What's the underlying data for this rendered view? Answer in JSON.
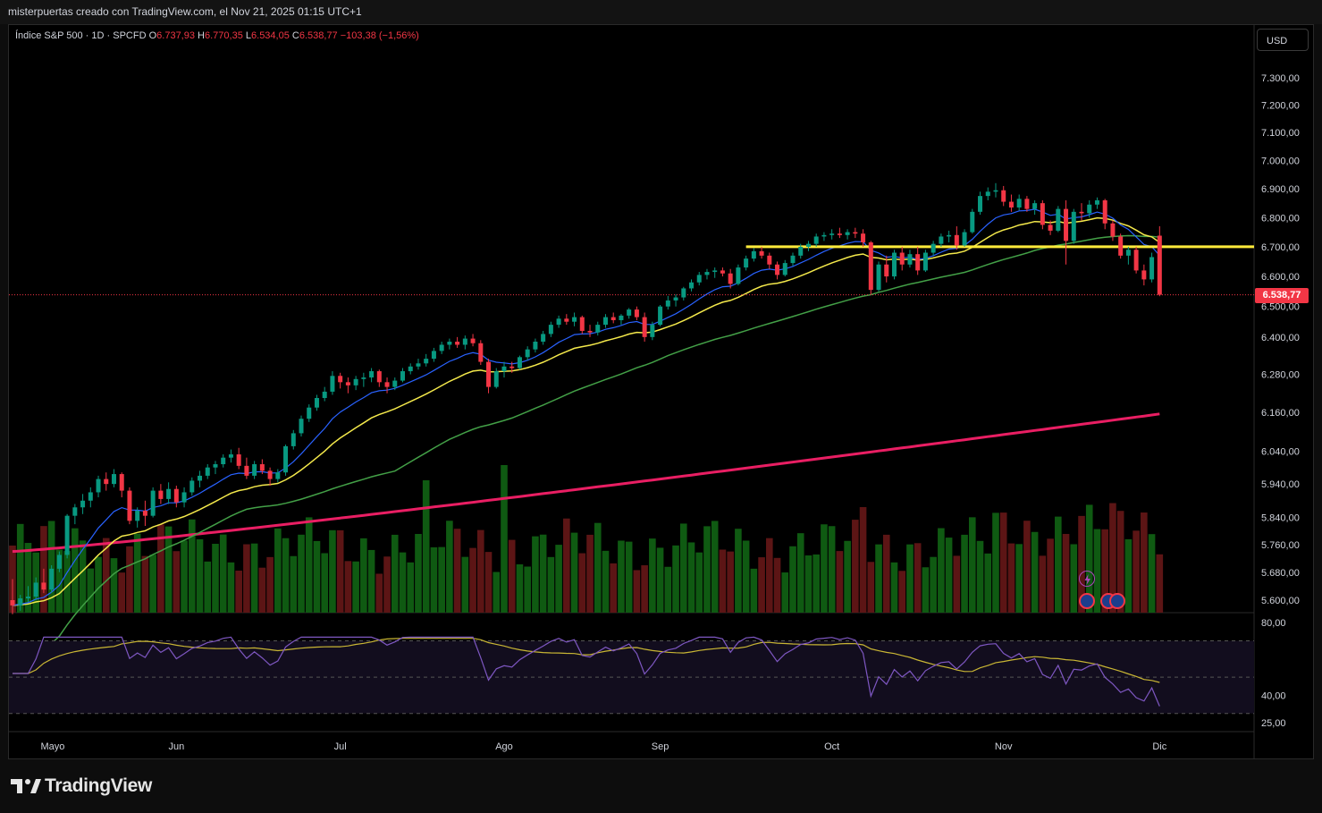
{
  "header": {
    "text": "misterpuertas creado con TradingView.com, el Nov 21, 2025 01:15 UTC+1"
  },
  "legend": {
    "symbol": "Índice S&P 500 · 1D · SPCFD",
    "open_label": "O",
    "open": "6.737,93",
    "high_label": "H",
    "high": "6.770,35",
    "low_label": "L",
    "low": "6.534,05",
    "close_label": "C",
    "close": "6.538,77",
    "change": "−103,38 (−1,56%)"
  },
  "currency_button": "USD",
  "last_price_tag": "6.538,77",
  "branding": "TradingView",
  "colors": {
    "up": "#089981",
    "down": "#f23645",
    "volume_up": "#0f5a12",
    "volume_down": "#5c1515",
    "ema_fast": "#2962ff",
    "ema_mid": "#f4e94b",
    "sma50": "#43a047",
    "sma200": "#e91e63",
    "level_line": "#ffeb3b",
    "rsi": "#7e57c2",
    "rsi_ma": "#c9b634"
  },
  "chart_data": [
    {
      "type": "candlestick",
      "title": "Índice S&P 500 · 1D · SPCFD",
      "x_ticks": [
        "Mayo",
        "Jun",
        "Jul",
        "Ago",
        "Sep",
        "Oct",
        "Nov",
        "Dic"
      ],
      "y_ticks": [
        "7.300,00",
        "7.200,00",
        "7.100,00",
        "7.000,00",
        "6.900,00",
        "6.800,00",
        "6.700,00",
        "6.600,00",
        "6.500,00",
        "6.400,00",
        "6.280,00",
        "6.160,00",
        "6.040,00",
        "5.940,00",
        "5.840,00",
        "5.760,00",
        "5.680,00",
        "5.600,00"
      ],
      "y_scale": "log",
      "ylim": [
        5560,
        7410
      ],
      "horizontal_level": 6700,
      "last_price": 6538.77,
      "month_anchors": [
        [
          "Mayo",
          4
        ],
        [
          "Jun",
          21
        ],
        [
          "Jul",
          42
        ],
        [
          "Ago",
          63
        ],
        [
          "Sep",
          83
        ],
        [
          "Oct",
          105
        ],
        [
          "Nov",
          127
        ],
        [
          "Dic",
          147
        ]
      ],
      "total_bars": 137,
      "ohlc": [
        [
          5600,
          5660,
          5560,
          5585
        ],
        [
          5585,
          5615,
          5570,
          5605
        ],
        [
          5605,
          5640,
          5595,
          5610
        ],
        [
          5610,
          5665,
          5600,
          5650
        ],
        [
          5650,
          5690,
          5620,
          5630
        ],
        [
          5630,
          5700,
          5620,
          5690
        ],
        [
          5690,
          5740,
          5680,
          5730
        ],
        [
          5730,
          5850,
          5720,
          5845
        ],
        [
          5845,
          5880,
          5820,
          5870
        ],
        [
          5870,
          5910,
          5850,
          5890
        ],
        [
          5890,
          5930,
          5870,
          5915
        ],
        [
          5915,
          5965,
          5900,
          5955
        ],
        [
          5955,
          5975,
          5920,
          5940
        ],
        [
          5940,
          5985,
          5930,
          5970
        ],
        [
          5970,
          5975,
          5900,
          5920
        ],
        [
          5920,
          5930,
          5820,
          5830
        ],
        [
          5830,
          5870,
          5810,
          5860
        ],
        [
          5860,
          5890,
          5815,
          5845
        ],
        [
          5845,
          5930,
          5840,
          5920
        ],
        [
          5920,
          5940,
          5880,
          5895
        ],
        [
          5895,
          5945,
          5880,
          5925
        ],
        [
          5925,
          5935,
          5870,
          5885
        ],
        [
          5885,
          5930,
          5870,
          5915
        ],
        [
          5915,
          5960,
          5905,
          5950
        ],
        [
          5950,
          5980,
          5930,
          5965
        ],
        [
          5965,
          6000,
          5955,
          5990
        ],
        [
          5990,
          6010,
          5970,
          6000
        ],
        [
          6000,
          6030,
          5990,
          6020
        ],
        [
          6020,
          6045,
          6005,
          6030
        ],
        [
          6030,
          6050,
          5985,
          5995
        ],
        [
          5995,
          6020,
          5955,
          5965
        ],
        [
          5965,
          6010,
          5955,
          6000
        ],
        [
          6000,
          6015,
          5970,
          5980
        ],
        [
          5980,
          5990,
          5935,
          5955
        ],
        [
          5955,
          5985,
          5945,
          5975
        ],
        [
          5975,
          6060,
          5965,
          6055
        ],
        [
          6055,
          6105,
          6045,
          6095
        ],
        [
          6095,
          6150,
          6085,
          6140
        ],
        [
          6140,
          6185,
          6130,
          6175
        ],
        [
          6175,
          6215,
          6165,
          6205
        ],
        [
          6205,
          6240,
          6195,
          6225
        ],
        [
          6225,
          6290,
          6215,
          6275
        ],
        [
          6275,
          6285,
          6235,
          6255
        ],
        [
          6255,
          6270,
          6220,
          6245
        ],
        [
          6245,
          6275,
          6230,
          6265
        ],
        [
          6265,
          6285,
          6240,
          6270
        ],
        [
          6270,
          6300,
          6255,
          6290
        ],
        [
          6290,
          6295,
          6240,
          6255
        ],
        [
          6255,
          6270,
          6220,
          6240
        ],
        [
          6240,
          6270,
          6230,
          6260
        ],
        [
          6260,
          6300,
          6255,
          6290
        ],
        [
          6290,
          6315,
          6280,
          6305
        ],
        [
          6305,
          6330,
          6295,
          6315
        ],
        [
          6315,
          6345,
          6305,
          6330
        ],
        [
          6330,
          6365,
          6320,
          6355
        ],
        [
          6355,
          6385,
          6345,
          6375
        ],
        [
          6375,
          6395,
          6360,
          6385
        ],
        [
          6385,
          6400,
          6365,
          6375
        ],
        [
          6375,
          6405,
          6360,
          6395
        ],
        [
          6395,
          6410,
          6370,
          6380
        ],
        [
          6380,
          6390,
          6310,
          6320
        ],
        [
          6320,
          6330,
          6220,
          6240
        ],
        [
          6240,
          6300,
          6235,
          6290
        ],
        [
          6290,
          6320,
          6270,
          6305
        ],
        [
          6305,
          6320,
          6285,
          6300
        ],
        [
          6300,
          6340,
          6295,
          6335
        ],
        [
          6335,
          6370,
          6325,
          6360
        ],
        [
          6360,
          6395,
          6350,
          6385
        ],
        [
          6385,
          6420,
          6375,
          6410
        ],
        [
          6410,
          6450,
          6400,
          6440
        ],
        [
          6440,
          6470,
          6430,
          6460
        ],
        [
          6460,
          6475,
          6440,
          6450
        ],
        [
          6450,
          6480,
          6435,
          6465
        ],
        [
          6465,
          6470,
          6410,
          6420
        ],
        [
          6420,
          6440,
          6400,
          6415
        ],
        [
          6415,
          6450,
          6405,
          6440
        ],
        [
          6440,
          6475,
          6430,
          6465
        ],
        [
          6465,
          6480,
          6445,
          6455
        ],
        [
          6455,
          6475,
          6440,
          6470
        ],
        [
          6470,
          6495,
          6460,
          6490
        ],
        [
          6490,
          6500,
          6455,
          6465
        ],
        [
          6465,
          6480,
          6385,
          6400
        ],
        [
          6400,
          6450,
          6390,
          6440
        ],
        [
          6440,
          6505,
          6435,
          6500
        ],
        [
          6500,
          6535,
          6490,
          6520
        ],
        [
          6520,
          6540,
          6500,
          6530
        ],
        [
          6530,
          6565,
          6520,
          6560
        ],
        [
          6560,
          6590,
          6550,
          6580
        ],
        [
          6580,
          6615,
          6570,
          6605
        ],
        [
          6605,
          6625,
          6590,
          6615
        ],
        [
          6615,
          6630,
          6595,
          6620
        ],
        [
          6620,
          6630,
          6600,
          6610
        ],
        [
          6610,
          6625,
          6560,
          6575
        ],
        [
          6575,
          6640,
          6570,
          6630
        ],
        [
          6630,
          6670,
          6620,
          6660
        ],
        [
          6660,
          6695,
          6650,
          6685
        ],
        [
          6685,
          6700,
          6660,
          6670
        ],
        [
          6670,
          6680,
          6625,
          6640
        ],
        [
          6640,
          6650,
          6590,
          6605
        ],
        [
          6605,
          6655,
          6600,
          6645
        ],
        [
          6645,
          6680,
          6635,
          6670
        ],
        [
          6670,
          6710,
          6660,
          6700
        ],
        [
          6700,
          6720,
          6685,
          6710
        ],
        [
          6710,
          6745,
          6700,
          6735
        ],
        [
          6735,
          6750,
          6720,
          6740
        ],
        [
          6740,
          6760,
          6725,
          6745
        ],
        [
          6745,
          6765,
          6730,
          6740
        ],
        [
          6740,
          6760,
          6725,
          6750
        ],
        [
          6750,
          6765,
          6730,
          6745
        ],
        [
          6745,
          6760,
          6700,
          6715
        ],
        [
          6715,
          6720,
          6540,
          6555
        ],
        [
          6555,
          6650,
          6550,
          6640
        ],
        [
          6640,
          6670,
          6580,
          6600
        ],
        [
          6600,
          6690,
          6590,
          6680
        ],
        [
          6680,
          6700,
          6620,
          6640
        ],
        [
          6640,
          6690,
          6630,
          6675
        ],
        [
          6675,
          6700,
          6605,
          6620
        ],
        [
          6620,
          6690,
          6615,
          6680
        ],
        [
          6680,
          6720,
          6670,
          6710
        ],
        [
          6710,
          6745,
          6700,
          6735
        ],
        [
          6735,
          6755,
          6715,
          6740
        ],
        [
          6740,
          6770,
          6690,
          6705
        ],
        [
          6705,
          6760,
          6700,
          6750
        ],
        [
          6750,
          6830,
          6745,
          6820
        ],
        [
          6820,
          6890,
          6810,
          6875
        ],
        [
          6875,
          6905,
          6860,
          6890
        ],
        [
          6890,
          6920,
          6870,
          6895
        ],
        [
          6895,
          6910,
          6840,
          6855
        ],
        [
          6855,
          6880,
          6820,
          6835
        ],
        [
          6835,
          6880,
          6825,
          6865
        ],
        [
          6865,
          6875,
          6820,
          6830
        ],
        [
          6830,
          6860,
          6810,
          6850
        ],
        [
          6850,
          6860,
          6760,
          6775
        ],
        [
          6775,
          6790,
          6740,
          6755
        ],
        [
          6755,
          6840,
          6750,
          6830
        ]
      ],
      "tail_ohlc": [
        [
          6830,
          6860,
          6640,
          6720
        ],
        [
          6720,
          6830,
          6710,
          6820
        ],
        [
          6820,
          6850,
          6790,
          6815
        ],
        [
          6815,
          6860,
          6800,
          6845
        ],
        [
          6845,
          6870,
          6830,
          6860
        ],
        [
          6860,
          6865,
          6760,
          6780
        ],
        [
          6780,
          6790,
          6720,
          6735
        ],
        [
          6735,
          6745,
          6660,
          6670
        ],
        [
          6670,
          6700,
          6640,
          6690
        ],
        [
          6690,
          6700,
          6610,
          6620
        ],
        [
          6620,
          6640,
          6570,
          6590
        ],
        [
          6590,
          6680,
          6580,
          6665
        ],
        [
          6737.93,
          6770.35,
          6534.05,
          6538.77
        ]
      ],
      "volume_scale_note": "relative",
      "indicators": [
        "EMA fast (blue)",
        "EMA (yellow)",
        "SMA 50 (green)",
        "SMA 200 (pink)"
      ]
    },
    {
      "type": "line",
      "title": "RSI",
      "y_ticks": [
        "80,00",
        "40,00",
        "25,00"
      ],
      "ylim": [
        20,
        85
      ],
      "bands": [
        70,
        50,
        30
      ],
      "rsi_last": 34
    }
  ]
}
